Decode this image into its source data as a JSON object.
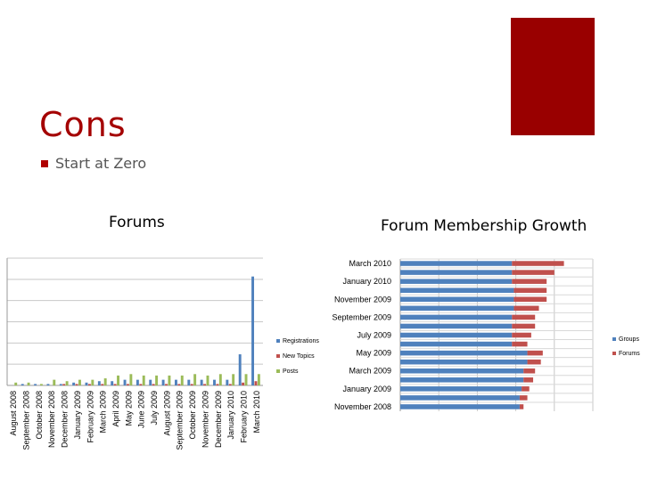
{
  "slide": {
    "title": "Cons",
    "bullets": [
      "Start at Zero"
    ],
    "accent_color": "#990000"
  },
  "chart_data": [
    {
      "type": "bar",
      "title": "Forums",
      "categories": [
        "August 2008",
        "September 2008",
        "October 2008",
        "November 2008",
        "December 2008",
        "January 2009",
        "February 2009",
        "March 2009",
        "April 2009",
        "May 2009",
        "June 2009",
        "July 2009",
        "August 2009",
        "September 2009",
        "October 2009",
        "November 2009",
        "December 2009",
        "January 2010",
        "February 2010",
        "March 2010"
      ],
      "series": [
        {
          "name": "Registrations",
          "color": "#4f81bd",
          "values": [
            0,
            1,
            1,
            1,
            1,
            2,
            2,
            3,
            3,
            4,
            4,
            4,
            4,
            4,
            4,
            4,
            4,
            4,
            22,
            77
          ]
        },
        {
          "name": "New Topics",
          "color": "#c0504d",
          "values": [
            0,
            0,
            0,
            0,
            1,
            1,
            1,
            1,
            1,
            1,
            1,
            1,
            1,
            1,
            1,
            1,
            1,
            1,
            2,
            3
          ]
        },
        {
          "name": "Posts",
          "color": "#9bbb59",
          "values": [
            2,
            2,
            1,
            4,
            3,
            4,
            4,
            5,
            7,
            8,
            7,
            7,
            7,
            7,
            8,
            7,
            8,
            8,
            8,
            8
          ]
        }
      ],
      "ylim": [
        0,
        90
      ],
      "grid": true,
      "legend": "right"
    },
    {
      "type": "bar",
      "orientation": "horizontal",
      "stacked": true,
      "title": "Forum Membership Growth",
      "categories": [
        "November 2008",
        "December 2008",
        "January 2009",
        "February 2009",
        "March 2009",
        "April 2009",
        "May 2009",
        "June 2009",
        "July 2009",
        "August 2009",
        "September 2009",
        "October 2009",
        "November 2009",
        "December 2009",
        "January 2010",
        "February 2010",
        "March 2010"
      ],
      "category_labels_shown": [
        "March 2010",
        "January 2010",
        "November 2009",
        "September 2009",
        "July 2009",
        "May 2009",
        "March 2009",
        "January 2009",
        "November 2008"
      ],
      "series": [
        {
          "name": "Groups",
          "color": "#4f81bd",
          "values": [
            62,
            62,
            63,
            64,
            64,
            66,
            66,
            58,
            58,
            58,
            58,
            59,
            59,
            59,
            58,
            58,
            58
          ]
        },
        {
          "name": "Forums",
          "color": "#c0504d",
          "values": [
            2,
            4,
            4,
            5,
            6,
            7,
            8,
            8,
            10,
            12,
            12,
            13,
            17,
            17,
            18,
            22,
            27
          ]
        }
      ],
      "xlim": [
        0,
        100
      ],
      "grid": true,
      "legend": "right"
    }
  ]
}
